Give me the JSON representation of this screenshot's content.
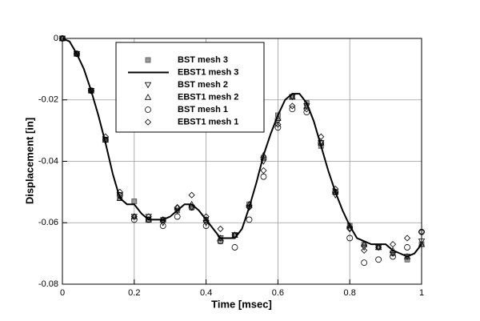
{
  "chart_data": {
    "type": "line",
    "x_label": "Time [msec]",
    "y_label": "Displacement [in]",
    "xlim": [
      0,
      1
    ],
    "ylim": [
      -0.08,
      0
    ],
    "xticks": [
      0,
      0.2,
      0.4,
      0.6,
      0.8,
      1
    ],
    "yticks": [
      0,
      -0.02,
      -0.04,
      -0.06,
      -0.08
    ],
    "grid": true,
    "legend": "upper left",
    "x": [
      0,
      0.04,
      0.08,
      0.12,
      0.16,
      0.2,
      0.24,
      0.28,
      0.32,
      0.36,
      0.4,
      0.44,
      0.48,
      0.52,
      0.56,
      0.6,
      0.64,
      0.68,
      0.72,
      0.76,
      0.8,
      0.84,
      0.88,
      0.92,
      0.96,
      1
    ],
    "series": [
      {
        "name": "BST mesh 3",
        "marker": "square",
        "color": "#555555",
        "values": [
          0,
          -0.005,
          -0.017,
          -0.033,
          -0.052,
          -0.053,
          -0.059,
          -0.059,
          -0.056,
          -0.055,
          -0.059,
          -0.066,
          -0.064,
          -0.054,
          -0.039,
          -0.025,
          -0.019,
          -0.021,
          -0.035,
          -0.05,
          -0.061,
          -0.067,
          -0.068,
          -0.07,
          -0.072,
          -0.067
        ]
      },
      {
        "name": "EBST1 mesh 3",
        "marker": "line",
        "color": "#000000",
        "x": [
          0,
          0.02,
          0.04,
          0.06,
          0.08,
          0.1,
          0.12,
          0.14,
          0.16,
          0.18,
          0.2,
          0.22,
          0.24,
          0.26,
          0.28,
          0.3,
          0.32,
          0.34,
          0.36,
          0.38,
          0.4,
          0.42,
          0.44,
          0.46,
          0.48,
          0.5,
          0.52,
          0.54,
          0.56,
          0.58,
          0.6,
          0.62,
          0.64,
          0.66,
          0.68,
          0.7,
          0.72,
          0.74,
          0.76,
          0.78,
          0.8,
          0.82,
          0.84,
          0.86,
          0.88,
          0.9,
          0.92,
          0.94,
          0.96,
          0.98,
          1
        ],
        "values": [
          0,
          -0.001,
          -0.005,
          -0.01,
          -0.017,
          -0.025,
          -0.034,
          -0.044,
          -0.052,
          -0.054,
          -0.054,
          -0.057,
          -0.059,
          -0.059,
          -0.059,
          -0.058,
          -0.056,
          -0.054,
          -0.054,
          -0.056,
          -0.059,
          -0.062,
          -0.065,
          -0.065,
          -0.065,
          -0.062,
          -0.055,
          -0.047,
          -0.038,
          -0.031,
          -0.025,
          -0.02,
          -0.018,
          -0.018,
          -0.021,
          -0.027,
          -0.035,
          -0.043,
          -0.05,
          -0.056,
          -0.061,
          -0.065,
          -0.066,
          -0.067,
          -0.067,
          -0.067,
          -0.069,
          -0.07,
          -0.071,
          -0.07,
          -0.067
        ]
      },
      {
        "name": "BST mesh 2",
        "marker": "triangle-down",
        "color": "#000000",
        "values": [
          0,
          -0.005,
          -0.017,
          -0.033,
          -0.051,
          -0.058,
          -0.058,
          -0.06,
          -0.056,
          -0.055,
          -0.06,
          -0.065,
          -0.064,
          -0.055,
          -0.04,
          -0.027,
          -0.019,
          -0.022,
          -0.034,
          -0.051,
          -0.062,
          -0.068,
          -0.068,
          -0.07,
          -0.071,
          -0.066
        ]
      },
      {
        "name": "EBST1 mesh 2",
        "marker": "triangle-up",
        "color": "#000000",
        "values": [
          0,
          -0.005,
          -0.017,
          -0.033,
          -0.052,
          -0.058,
          -0.059,
          -0.059,
          -0.055,
          -0.054,
          -0.059,
          -0.065,
          -0.064,
          -0.054,
          -0.038,
          -0.026,
          -0.019,
          -0.022,
          -0.034,
          -0.05,
          -0.061,
          -0.067,
          -0.068,
          -0.069,
          -0.071,
          -0.067
        ]
      },
      {
        "name": "BST mesh 1",
        "marker": "circle",
        "color": "#000000",
        "values": [
          0,
          -0.005,
          -0.017,
          -0.033,
          -0.051,
          -0.059,
          -0.059,
          -0.061,
          -0.058,
          -0.055,
          -0.061,
          -0.066,
          -0.068,
          -0.059,
          -0.045,
          -0.029,
          -0.023,
          -0.024,
          -0.034,
          -0.05,
          -0.065,
          -0.073,
          -0.072,
          -0.071,
          -0.068,
          -0.063
        ]
      },
      {
        "name": "EBST1 mesh 1",
        "marker": "diamond",
        "color": "#000000",
        "values": [
          0,
          -0.005,
          -0.017,
          -0.032,
          -0.05,
          -0.058,
          -0.058,
          -0.059,
          -0.055,
          -0.051,
          -0.058,
          -0.062,
          -0.064,
          -0.055,
          -0.043,
          -0.028,
          -0.022,
          -0.023,
          -0.032,
          -0.049,
          -0.062,
          -0.069,
          -0.068,
          -0.067,
          -0.065,
          -0.063
        ]
      }
    ]
  }
}
